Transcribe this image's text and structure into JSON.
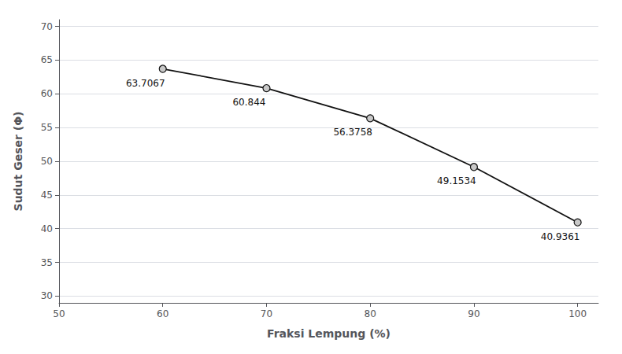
{
  "chart_data": {
    "type": "line",
    "x": [
      60,
      70,
      80,
      90,
      100
    ],
    "values": [
      63.7067,
      60.844,
      56.3758,
      49.1534,
      40.9361
    ],
    "xlabel": "Fraksi Lempung (%)",
    "ylabel": "Sudut Geser (Φ)",
    "xlim": [
      50,
      102
    ],
    "ylim": [
      29,
      71
    ],
    "xticks": [
      50,
      60,
      70,
      80,
      90,
      100
    ],
    "yticks": [
      30,
      35,
      40,
      45,
      50,
      55,
      60,
      65,
      70
    ],
    "color": "#111111",
    "marker": "circle",
    "grid": "y",
    "data_labels": true
  }
}
